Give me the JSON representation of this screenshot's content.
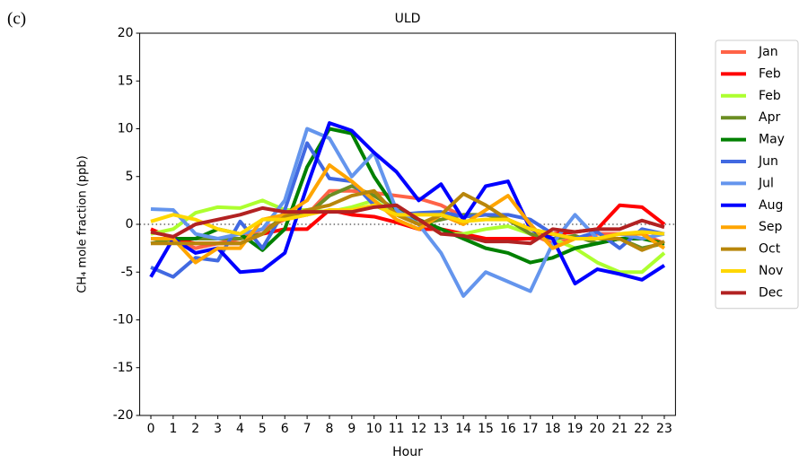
{
  "chart_data": {
    "type": "line",
    "panel_label": "(c)",
    "title": "ULD",
    "xlabel": "Hour",
    "ylabel": "CH₄ mole fraction (ppb)",
    "x": [
      0,
      1,
      2,
      3,
      4,
      5,
      6,
      7,
      8,
      9,
      10,
      11,
      12,
      13,
      14,
      15,
      16,
      17,
      18,
      19,
      20,
      21,
      22,
      23
    ],
    "xlim": [
      -0.5,
      23.5
    ],
    "xticks": [
      0,
      1,
      2,
      3,
      4,
      5,
      6,
      7,
      8,
      9,
      10,
      11,
      12,
      13,
      14,
      15,
      16,
      17,
      18,
      19,
      20,
      21,
      22,
      23
    ],
    "ylim": [
      -20,
      20
    ],
    "yticks": [
      -20,
      -15,
      -10,
      -5,
      0,
      5,
      10,
      15,
      20
    ],
    "hline": 0,
    "legend": "outside right",
    "series": [
      {
        "name": "Jan",
        "color": "#ff6347",
        "values": [
          -1.5,
          -1.5,
          -2.5,
          -2,
          -1.5,
          -0.5,
          0.5,
          1,
          3.5,
          3.5,
          3.3,
          3,
          2.7,
          2,
          0.8,
          1,
          0.5,
          -1,
          -2,
          -1.5,
          -1,
          -1,
          -1,
          -2
        ]
      },
      {
        "name": "Feb",
        "color": "#ff0000",
        "values": [
          -0.5,
          -1.5,
          -2,
          -2,
          -2,
          -1,
          -0.5,
          -0.5,
          1.5,
          1,
          0.8,
          0.2,
          -0.5,
          -0.5,
          -1,
          -1.5,
          -1.5,
          -1.5,
          -1,
          -0.8,
          -0.5,
          2,
          1.8,
          0
        ]
      },
      {
        "name": "Feb",
        "color": "#adff2f",
        "values": [
          -1,
          -0.5,
          1.2,
          1.8,
          1.7,
          2.5,
          1.5,
          1.5,
          1.3,
          1.8,
          2.5,
          1,
          0.5,
          -1,
          -1,
          -0.5,
          -0.2,
          -1,
          -1.5,
          -2.5,
          -4,
          -5,
          -5,
          -3
        ]
      },
      {
        "name": "Apr",
        "color": "#6b8e23",
        "values": [
          -2,
          -1.5,
          -1.5,
          -1.5,
          -1.5,
          -1,
          1,
          1,
          3,
          4,
          3,
          1.5,
          0,
          0.5,
          1,
          1,
          0.5,
          -1,
          -1.5,
          -1.2,
          -2,
          -1.5,
          -2.5,
          -2
        ]
      },
      {
        "name": "May",
        "color": "#008000",
        "values": [
          -1.5,
          -1.5,
          -1.5,
          -0.5,
          -1,
          -2.7,
          -0.5,
          6,
          10,
          9.5,
          5,
          1.5,
          0.5,
          -0.5,
          -1.5,
          -2.5,
          -3,
          -4,
          -3.5,
          -2.5,
          -2,
          -1.5,
          -1.5,
          -2
        ]
      },
      {
        "name": "Jun",
        "color": "#4169e1",
        "values": [
          -4.5,
          -5.5,
          -3.5,
          -3.8,
          0.3,
          -2.5,
          1.5,
          8.5,
          4.8,
          4.5,
          2,
          1,
          1.2,
          1.3,
          0.8,
          1,
          1,
          0.5,
          -1,
          -1.5,
          -0.8,
          -2.5,
          -0.5,
          -1
        ]
      },
      {
        "name": "Jul",
        "color": "#6495ed",
        "values": [
          1.6,
          1.5,
          -1,
          -1.5,
          -1,
          -0.5,
          2.5,
          10,
          9,
          5,
          7.5,
          1.5,
          0,
          -3,
          -7.5,
          -5,
          -6,
          -7,
          -2,
          1,
          -1.5,
          -1,
          -1.5,
          -1
        ]
      },
      {
        "name": "Aug",
        "color": "#0000ff",
        "values": [
          -5.5,
          -1.5,
          -3,
          -2.5,
          -5,
          -4.8,
          -3,
          4,
          10.6,
          9.8,
          7.5,
          5.5,
          2.5,
          4.2,
          0.5,
          4,
          4.5,
          -0.5,
          -1.5,
          -6.2,
          -4.7,
          -5.2,
          -5.8,
          -4.3
        ]
      },
      {
        "name": "Sep",
        "color": "#ffa500",
        "values": [
          -1.5,
          -1.5,
          -4,
          -2.5,
          -2.5,
          0.5,
          1,
          2.5,
          6.2,
          4.5,
          2.5,
          0.5,
          -0.5,
          1,
          0,
          1.5,
          3,
          0,
          -2.5,
          -1.5,
          -1.5,
          -1,
          -1,
          -2.5
        ]
      },
      {
        "name": "Oct",
        "color": "#b8860b",
        "values": [
          -2,
          -2,
          -2,
          -2,
          -2,
          -1,
          0.8,
          1.5,
          2,
          3,
          3.5,
          1,
          0,
          1,
          3.2,
          2,
          0.5,
          -0.5,
          -1,
          -1.5,
          -1.5,
          -1.5,
          -2.7,
          -1.8
        ]
      },
      {
        "name": "Nov",
        "color": "#ffd700",
        "values": [
          0.3,
          1,
          0.5,
          -0.5,
          -1,
          0.5,
          0.5,
          1,
          1.5,
          1.5,
          2,
          1,
          1,
          1,
          0.3,
          0.5,
          0.5,
          -0.5,
          -1,
          -1.5,
          -1.5,
          -1,
          -0.8,
          -1
        ]
      },
      {
        "name": "Dec",
        "color": "#b22222",
        "values": [
          -0.8,
          -1.3,
          0,
          0.5,
          1,
          1.7,
          1.3,
          1.3,
          1.3,
          1.3,
          1.8,
          2,
          0.5,
          -1,
          -1.2,
          -1.8,
          -1.8,
          -2,
          -0.5,
          -0.8,
          -0.5,
          -0.5,
          0.4,
          -0.3
        ]
      }
    ]
  }
}
